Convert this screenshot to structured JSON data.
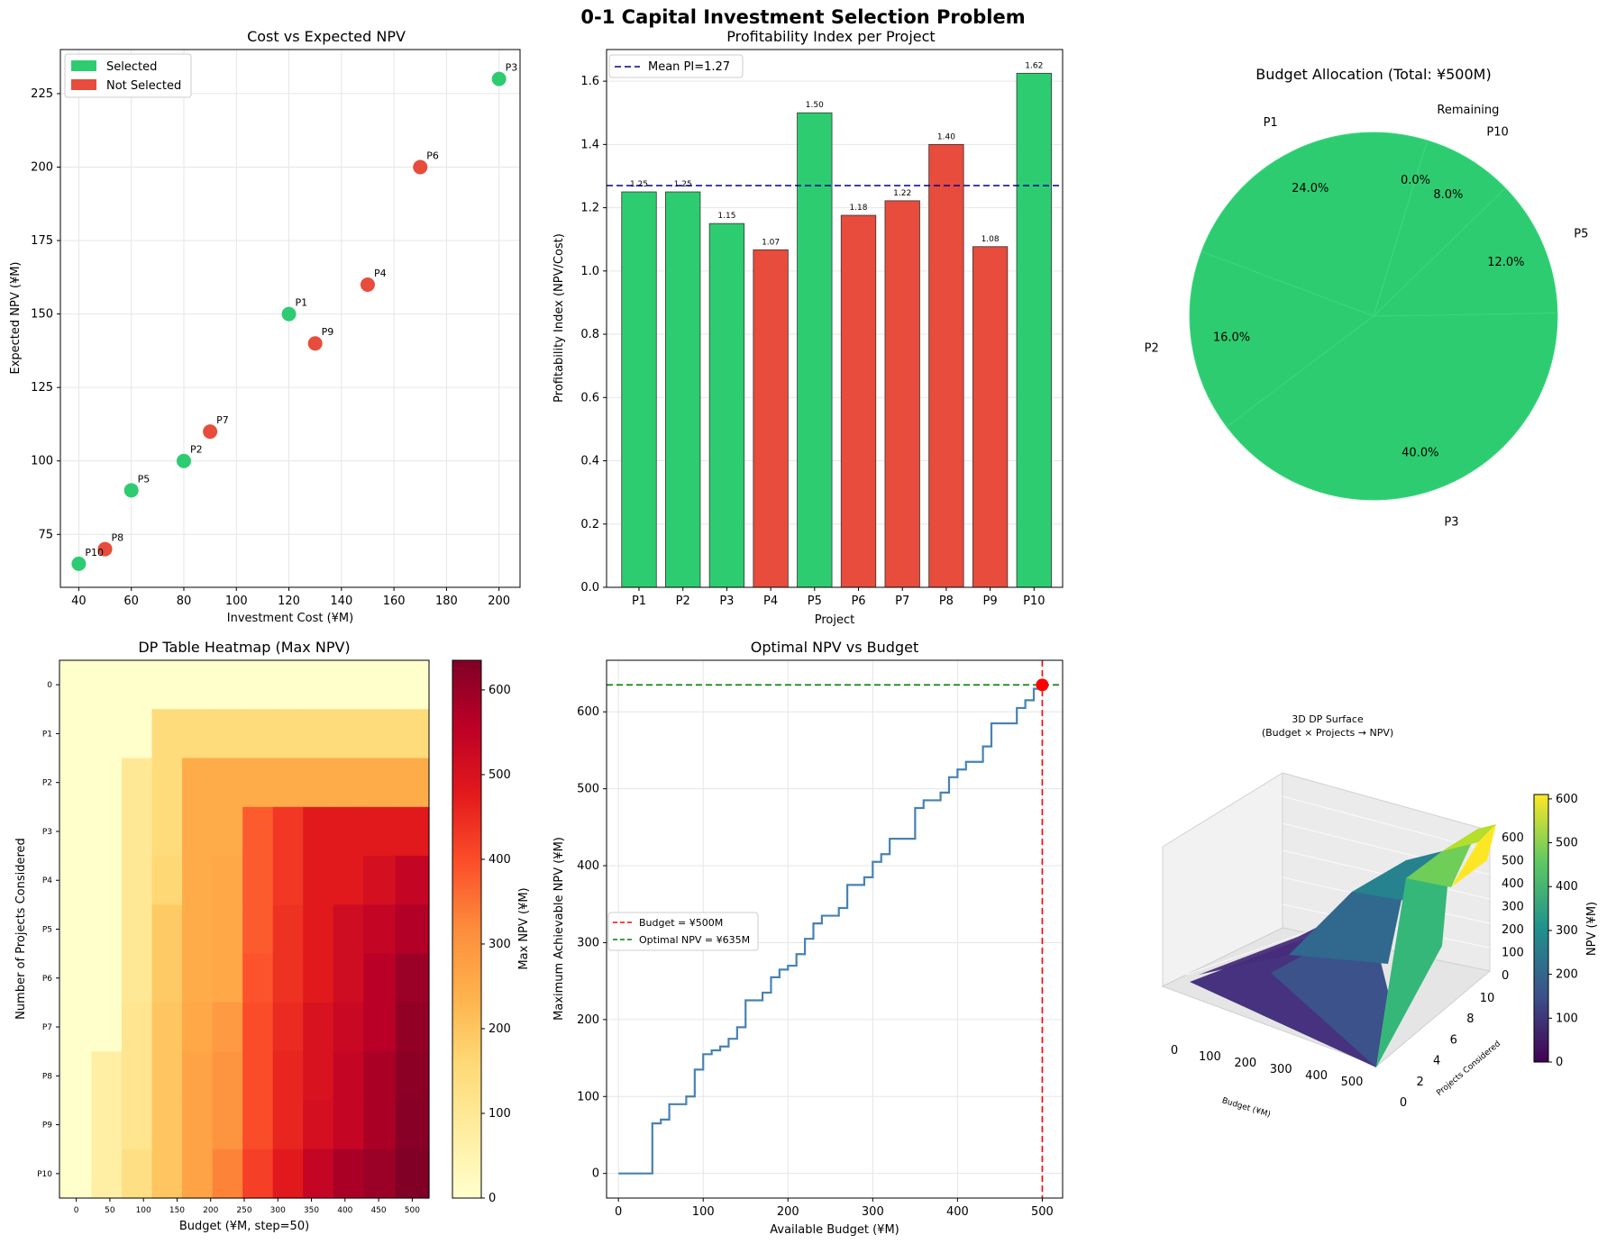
{
  "figure": {
    "suptitle": "0-1 Capital Investment Selection Problem"
  },
  "colors": {
    "selected": "#2ecc71",
    "not_selected": "#e74c3c",
    "mean_line": "#00008b",
    "npv_line": "#4682b4",
    "budget_line": "#ff0000",
    "optimal_line": "#008000"
  },
  "chart_data": [
    {
      "id": "scatter",
      "type": "scatter",
      "title": "Cost vs Expected NPV",
      "xlabel": "Investment Cost (¥M)",
      "ylabel": "Expected NPV (¥M)",
      "xlim": [
        33,
        208
      ],
      "ylim": [
        57,
        240
      ],
      "xticks": [
        40,
        60,
        80,
        100,
        120,
        140,
        160,
        180,
        200
      ],
      "yticks": [
        75,
        100,
        125,
        150,
        175,
        200,
        225
      ],
      "legend": [
        "Selected",
        "Not Selected"
      ],
      "legend_position": "upper-left",
      "points": [
        {
          "label": "P1",
          "cost": 120,
          "npv": 150,
          "selected": true
        },
        {
          "label": "P2",
          "cost": 80,
          "npv": 100,
          "selected": true
        },
        {
          "label": "P3",
          "cost": 200,
          "npv": 230,
          "selected": true
        },
        {
          "label": "P4",
          "cost": 150,
          "npv": 160,
          "selected": false
        },
        {
          "label": "P5",
          "cost": 60,
          "npv": 90,
          "selected": true
        },
        {
          "label": "P6",
          "cost": 170,
          "npv": 200,
          "selected": false
        },
        {
          "label": "P7",
          "cost": 90,
          "npv": 110,
          "selected": false
        },
        {
          "label": "P8",
          "cost": 50,
          "npv": 70,
          "selected": false
        },
        {
          "label": "P9",
          "cost": 130,
          "npv": 140,
          "selected": false
        },
        {
          "label": "P10",
          "cost": 40,
          "npv": 65,
          "selected": true
        }
      ]
    },
    {
      "id": "pi_bar",
      "type": "bar",
      "title": "Profitability Index per Project",
      "xlabel": "Project",
      "ylabel": "Profitability Index (NPV/Cost)",
      "ylim": [
        0,
        1.7
      ],
      "yticks": [
        "0.0",
        "0.2",
        "0.4",
        "0.6",
        "0.8",
        "1.0",
        "1.2",
        "1.4",
        "1.6"
      ],
      "categories": [
        "P1",
        "P2",
        "P3",
        "P4",
        "P5",
        "P6",
        "P7",
        "P8",
        "P9",
        "P10"
      ],
      "values": [
        1.25,
        1.25,
        1.15,
        1.067,
        1.5,
        1.176,
        1.222,
        1.4,
        1.077,
        1.625
      ],
      "value_labels": [
        "1.25",
        "1.25",
        "1.15",
        "1.07",
        "1.50",
        "1.18",
        "1.22",
        "1.40",
        "1.08",
        "1.62"
      ],
      "selected": [
        true,
        true,
        true,
        false,
        true,
        false,
        false,
        false,
        false,
        true
      ],
      "mean": 1.27,
      "mean_label": "Mean PI=1.27"
    },
    {
      "id": "pie",
      "type": "pie",
      "title": "Budget Allocation (Total: ¥500M)",
      "slices": [
        {
          "label": "P1",
          "pct_label": "24.0%",
          "value": 24.0
        },
        {
          "label": "P2",
          "pct_label": "16.0%",
          "value": 16.0
        },
        {
          "label": "P3",
          "pct_label": "40.0%",
          "value": 40.0
        },
        {
          "label": "P5",
          "pct_label": "12.0%",
          "value": 12.0
        },
        {
          "label": "P10",
          "pct_label": "8.0%",
          "value": 8.0
        },
        {
          "label": "Remaining",
          "pct_label": "0.0%",
          "value": 0.0
        }
      ]
    },
    {
      "id": "heatmap",
      "type": "heatmap",
      "title": "DP Table Heatmap (Max NPV)",
      "xlabel": "Budget (¥M, step=50)",
      "ylabel": "Number of Projects Considered",
      "colorbar_label": "Max NPV (¥M)",
      "colorbar_ticks": [
        "0",
        "100",
        "200",
        "300",
        "400",
        "500",
        "600"
      ],
      "vmax": 635,
      "budget_axis": [
        0,
        45,
        90,
        135,
        180,
        225,
        270,
        315,
        360,
        405,
        450,
        500
      ],
      "x_tick_labels": [
        "0",
        "50",
        "100",
        "150",
        "200",
        "250",
        "300",
        "350",
        "400",
        "450",
        "500"
      ],
      "y_tick_labels": [
        "0",
        "P1",
        "P2",
        "P3",
        "P4",
        "P5",
        "P6",
        "P7",
        "P8",
        "P9",
        "P10"
      ],
      "matrix": [
        [
          0,
          0,
          0,
          0,
          0,
          0,
          0,
          0,
          0,
          0,
          0,
          0
        ],
        [
          0,
          0,
          0,
          150,
          150,
          150,
          150,
          150,
          150,
          150,
          150,
          150
        ],
        [
          0,
          0,
          100,
          150,
          250,
          250,
          250,
          250,
          250,
          250,
          250,
          250
        ],
        [
          0,
          0,
          100,
          150,
          250,
          250,
          380,
          430,
          480,
          480,
          480,
          480
        ],
        [
          0,
          0,
          100,
          160,
          250,
          260,
          380,
          430,
          480,
          480,
          510,
          540
        ],
        [
          0,
          0,
          100,
          190,
          250,
          260,
          380,
          440,
          480,
          520,
          540,
          570
        ],
        [
          0,
          0,
          100,
          190,
          250,
          260,
          390,
          440,
          480,
          520,
          560,
          600
        ],
        [
          0,
          0,
          110,
          200,
          260,
          290,
          400,
          450,
          500,
          530,
          560,
          610
        ],
        [
          0,
          70,
          110,
          200,
          270,
          300,
          400,
          460,
          500,
          540,
          580,
          620
        ],
        [
          0,
          70,
          110,
          200,
          270,
          300,
          400,
          460,
          510,
          540,
          580,
          625
        ],
        [
          0,
          70,
          135,
          200,
          270,
          330,
          420,
          480,
          540,
          580,
          600,
          635
        ]
      ]
    },
    {
      "id": "npv_budget",
      "type": "line",
      "title": "Optimal NPV vs Budget",
      "xlabel": "Available Budget (¥M)",
      "ylabel": "Maximum Achievable NPV (¥M)",
      "xlim": [
        -14,
        524
      ],
      "ylim": [
        -32,
        667
      ],
      "xticks": [
        0,
        100,
        200,
        300,
        400,
        500
      ],
      "yticks": [
        0,
        100,
        200,
        300,
        400,
        500,
        600
      ],
      "x": [
        0,
        40,
        50,
        60,
        80,
        90,
        100,
        110,
        120,
        130,
        140,
        150,
        160,
        170,
        180,
        190,
        200,
        210,
        220,
        230,
        240,
        250,
        260,
        270,
        280,
        290,
        300,
        310,
        320,
        330,
        340,
        350,
        360,
        370,
        380,
        390,
        400,
        410,
        420,
        430,
        440,
        450,
        460,
        470,
        480,
        490,
        500
      ],
      "y": [
        0,
        65,
        70,
        90,
        100,
        135,
        155,
        160,
        165,
        175,
        190,
        225,
        225,
        235,
        255,
        265,
        270,
        285,
        305,
        325,
        335,
        335,
        345,
        375,
        375,
        385,
        405,
        415,
        435,
        435,
        435,
        475,
        485,
        485,
        495,
        515,
        525,
        535,
        535,
        555,
        585,
        585,
        585,
        605,
        615,
        630,
        635
      ],
      "budget_value": 500,
      "optimal_value": 635,
      "legend": [
        "Budget = ¥500M",
        "Optimal NPV = ¥635M"
      ],
      "legend_position": "center-left"
    },
    {
      "id": "surface",
      "type": "surface3d",
      "title": "3D DP Surface",
      "subtitle": "(Budget × Projects → NPV)",
      "xlabel": "Budget (¥M)",
      "ylabel": "Projects Considered",
      "colorbar_label": "NPV (¥M)",
      "budget_ticks": [
        "0",
        "100",
        "200",
        "300",
        "400",
        "500"
      ],
      "project_ticks": [
        "0",
        "2",
        "4",
        "6",
        "8",
        "10"
      ],
      "z_ticks": [
        "0",
        "100",
        "200",
        "300",
        "400",
        "500",
        "600"
      ],
      "colorbar_ticks": [
        "0",
        "100",
        "200",
        "300",
        "400",
        "500",
        "600"
      ],
      "vmax": 610
    }
  ]
}
